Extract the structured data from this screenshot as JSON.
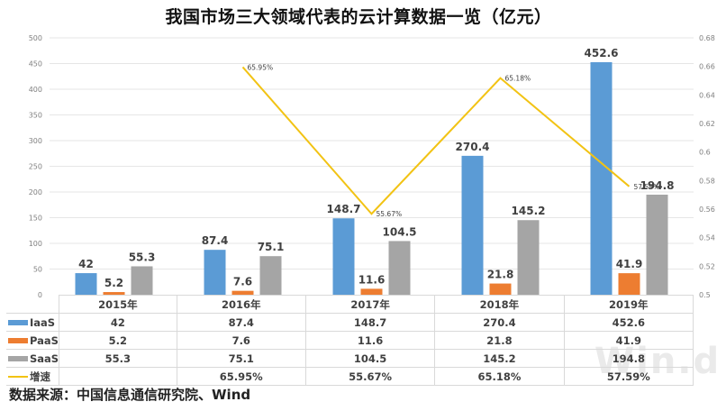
{
  "title": "我国市场三大领域代表的云计算数据一览（亿元）",
  "source": "数据来源：中国信息通信研究院、Wind",
  "watermark": "Win.d",
  "colors": {
    "iaas": "#5b9bd5",
    "paas": "#ed7d31",
    "saas": "#a5a5a5",
    "growth": "#f2c314",
    "grid": "#e6e6e6"
  },
  "chart_data": {
    "type": "bar",
    "title": "我国市场三大领域代表的云计算数据一览（亿元）",
    "categories": [
      "2015年",
      "2016年",
      "2017年",
      "2018年",
      "2019年"
    ],
    "series": [
      {
        "name": "IaaS",
        "type": "bar",
        "axis": "left",
        "values": [
          42,
          87.4,
          148.7,
          270.4,
          452.6
        ]
      },
      {
        "name": "PaaS",
        "type": "bar",
        "axis": "left",
        "values": [
          5.2,
          7.6,
          11.6,
          21.8,
          41.9
        ]
      },
      {
        "name": "SaaS",
        "type": "bar",
        "axis": "left",
        "values": [
          55.3,
          75.1,
          104.5,
          145.2,
          194.8
        ]
      },
      {
        "name": "增速",
        "type": "line",
        "axis": "right",
        "values": [
          null,
          0.6595,
          0.5567,
          0.6518,
          0.5759
        ],
        "labels": [
          "",
          "65.95%",
          "55.67%",
          "65.18%",
          "57.59%"
        ]
      }
    ],
    "left_axis": {
      "ylim": [
        0,
        500
      ],
      "ticks": [
        0,
        50,
        100,
        150,
        200,
        250,
        300,
        350,
        400,
        450,
        500
      ]
    },
    "right_axis": {
      "ylim": [
        0.5,
        0.68
      ],
      "ticks": [
        "0.5",
        "0.52",
        "0.54",
        "0.56",
        "0.58",
        "0.6",
        "0.62",
        "0.64",
        "0.66",
        "0.68"
      ]
    },
    "grid": true,
    "legend_position": "data-table",
    "xlabel": "",
    "ylabel": ""
  },
  "table": {
    "header": [
      "2015年",
      "2016年",
      "2017年",
      "2018年",
      "2019年"
    ],
    "rows": [
      {
        "label": "IaaS",
        "swatch": "bar",
        "values": [
          "42",
          "87.4",
          "148.7",
          "270.4",
          "452.6"
        ]
      },
      {
        "label": "PaaS",
        "swatch": "bar",
        "values": [
          "5.2",
          "7.6",
          "11.6",
          "21.8",
          "41.9"
        ]
      },
      {
        "label": "SaaS",
        "swatch": "bar",
        "values": [
          "55.3",
          "75.1",
          "104.5",
          "145.2",
          "194.8"
        ]
      },
      {
        "label": "增速",
        "swatch": "line",
        "values": [
          "",
          "65.95%",
          "55.67%",
          "65.18%",
          "57.59%"
        ]
      }
    ]
  }
}
